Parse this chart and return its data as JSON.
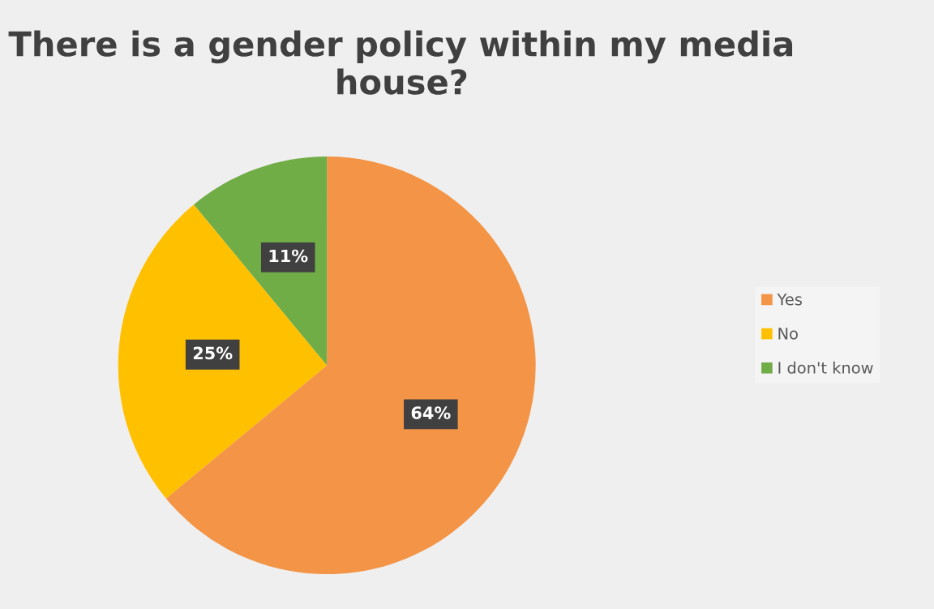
{
  "chart_data": {
    "type": "pie",
    "title": "There is a gender policy within my media house?",
    "categories": [
      "Yes",
      "No",
      "I don't know"
    ],
    "values": [
      64,
      25,
      11
    ],
    "colors": [
      "#f39446",
      "#ffc000",
      "#70ad47"
    ],
    "value_labels": [
      "64%",
      "25%",
      "11%"
    ],
    "legend": "right"
  }
}
